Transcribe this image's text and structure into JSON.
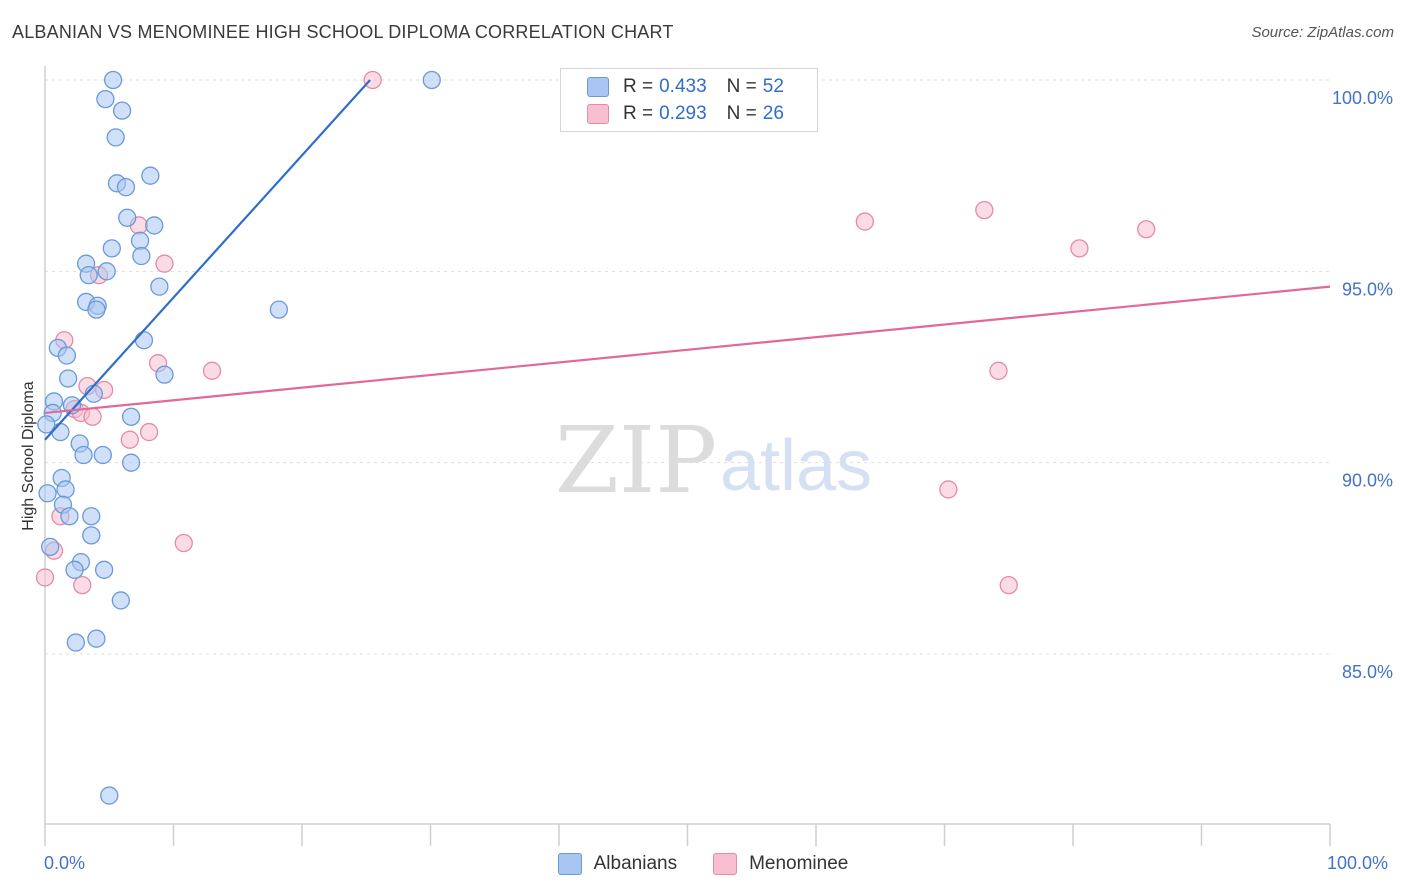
{
  "title": "ALBANIAN VS MENOMINEE HIGH SCHOOL DIPLOMA CORRELATION CHART",
  "source": "Source: ZipAtlas.com",
  "watermark": {
    "zip": "ZIP",
    "atlas": "atlas"
  },
  "legend": {
    "r_label": "R = ",
    "n_label": "N = ",
    "albanians": {
      "r": "0.433",
      "n": "52"
    },
    "menominee": {
      "r": "0.293",
      "n": "26"
    }
  },
  "bottom_legend": {
    "albanians": "Albanians",
    "menominee": "Menominee"
  },
  "colors": {
    "albanians_fill": "#a9c6f2",
    "albanians_stroke": "#6b9ad8",
    "albanians_line": "#2f6ec9",
    "menominee_fill": "#f7bfd0",
    "menominee_stroke": "#e58aa8",
    "menominee_line": "#e0699a",
    "axis_text": "#4472c4"
  },
  "chart_data": {
    "type": "scatter",
    "title": "ALBANIAN VS MENOMINEE HIGH SCHOOL DIPLOMA CORRELATION CHART",
    "xlabel": "",
    "ylabel": "High School Diploma",
    "xlim": [
      0,
      100
    ],
    "ylim": [
      80.5,
      100.8
    ],
    "x_tick_labels": {
      "left": "0.0%",
      "right": "100.0%"
    },
    "y_ticks": [
      {
        "value": 85,
        "label": "85.0%"
      },
      {
        "value": 90,
        "label": "90.0%"
      },
      {
        "value": 95,
        "label": "95.0%"
      },
      {
        "value": 100,
        "label": "100.0%"
      }
    ],
    "series": [
      {
        "name": "Albanians",
        "r": 0.433,
        "n": 52,
        "trend": {
          "x0": 0.0,
          "y0": 90.6,
          "x1": 25.3,
          "y1": 100.0
        },
        "points": [
          [
            5.3,
            100.0
          ],
          [
            30.1,
            100.0
          ],
          [
            4.7,
            99.5
          ],
          [
            6.0,
            99.2
          ],
          [
            5.5,
            98.5
          ],
          [
            8.2,
            97.5
          ],
          [
            5.6,
            97.3
          ],
          [
            6.3,
            97.2
          ],
          [
            6.4,
            96.4
          ],
          [
            8.5,
            96.2
          ],
          [
            7.4,
            95.8
          ],
          [
            5.2,
            95.6
          ],
          [
            7.5,
            95.4
          ],
          [
            3.2,
            95.2
          ],
          [
            4.8,
            95.0
          ],
          [
            3.4,
            94.9
          ],
          [
            8.9,
            94.6
          ],
          [
            3.2,
            94.2
          ],
          [
            4.1,
            94.1
          ],
          [
            4.0,
            94.0
          ],
          [
            18.2,
            94.0
          ],
          [
            7.7,
            93.2
          ],
          [
            1.0,
            93.0
          ],
          [
            1.7,
            92.8
          ],
          [
            9.3,
            92.3
          ],
          [
            1.8,
            92.2
          ],
          [
            3.8,
            91.8
          ],
          [
            0.7,
            91.6
          ],
          [
            2.1,
            91.5
          ],
          [
            0.6,
            91.3
          ],
          [
            6.7,
            91.2
          ],
          [
            1.2,
            90.8
          ],
          [
            2.7,
            90.5
          ],
          [
            3.0,
            90.2
          ],
          [
            4.5,
            90.2
          ],
          [
            6.7,
            90.0
          ],
          [
            1.3,
            89.6
          ],
          [
            1.6,
            89.3
          ],
          [
            0.2,
            89.2
          ],
          [
            1.4,
            88.9
          ],
          [
            1.9,
            88.6
          ],
          [
            3.6,
            88.6
          ],
          [
            3.6,
            88.1
          ],
          [
            0.4,
            87.8
          ],
          [
            2.8,
            87.4
          ],
          [
            2.3,
            87.2
          ],
          [
            4.6,
            87.2
          ],
          [
            5.9,
            86.4
          ],
          [
            4.0,
            85.4
          ],
          [
            2.4,
            85.3
          ],
          [
            5.0,
            81.3
          ],
          [
            0.1,
            91.0
          ]
        ]
      },
      {
        "name": "Menominee",
        "r": 0.293,
        "n": 26,
        "trend": {
          "x0": 0.0,
          "y0": 91.3,
          "x1": 100.0,
          "y1": 94.6
        },
        "points": [
          [
            25.5,
            100.0
          ],
          [
            73.1,
            96.6
          ],
          [
            63.8,
            96.3
          ],
          [
            7.3,
            96.2
          ],
          [
            85.7,
            96.1
          ],
          [
            80.5,
            95.6
          ],
          [
            9.3,
            95.2
          ],
          [
            4.2,
            94.9
          ],
          [
            1.5,
            93.2
          ],
          [
            8.8,
            92.6
          ],
          [
            13.0,
            92.4
          ],
          [
            74.2,
            92.4
          ],
          [
            3.3,
            92.0
          ],
          [
            4.6,
            91.9
          ],
          [
            2.3,
            91.4
          ],
          [
            2.8,
            91.3
          ],
          [
            3.7,
            91.2
          ],
          [
            8.1,
            90.8
          ],
          [
            6.6,
            90.6
          ],
          [
            70.3,
            89.3
          ],
          [
            1.2,
            88.6
          ],
          [
            10.8,
            87.9
          ],
          [
            0.7,
            87.7
          ],
          [
            0.0,
            87.0
          ],
          [
            2.9,
            86.8
          ],
          [
            75.0,
            86.8
          ]
        ]
      }
    ]
  }
}
